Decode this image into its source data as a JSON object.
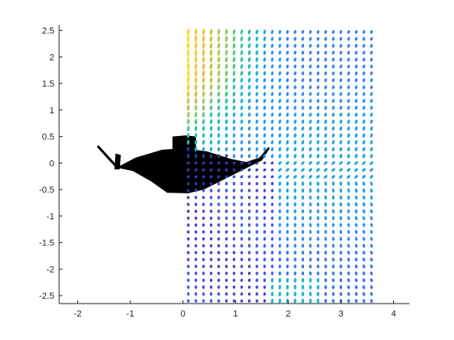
{
  "chart_data": {
    "type": "scatter",
    "title": "",
    "xlabel": "",
    "ylabel": "",
    "xlim": [
      -2.35,
      4.3
    ],
    "ylim": [
      -2.65,
      2.6
    ],
    "x_ticks": [
      -2,
      -1,
      0,
      1,
      2,
      3,
      4
    ],
    "x_tick_labels": [
      "-2",
      "-1",
      "0",
      "1",
      "2",
      "3",
      "4"
    ],
    "y_ticks": [
      -2.5,
      -2,
      -1.5,
      -1,
      -0.5,
      0,
      0.5,
      1,
      1.5,
      2,
      2.5
    ],
    "y_tick_labels": [
      "-2.5",
      "-2",
      "-1.5",
      "-1",
      "-0.5",
      "0",
      "0.5",
      "1",
      "1.5",
      "2",
      "2.5"
    ],
    "grid": false,
    "legend": "none",
    "marker_grid": {
      "x_min": 0.1,
      "x_max": 3.65,
      "x_step": 0.145,
      "y_min": -2.6,
      "y_max": 2.52,
      "y_step": 0.13
    },
    "colormap": [
      "#3e26a8",
      "#4353ef",
      "#2f8ef9",
      "#14b5d3",
      "#36c596",
      "#9bcb5a",
      "#e5be3b",
      "#fbd92c"
    ],
    "silhouette": {
      "fill": "#000000",
      "outline": [
        [
          -1.25,
          -0.08
        ],
        [
          -0.9,
          0.1
        ],
        [
          -0.4,
          0.25
        ],
        [
          0.0,
          0.28
        ],
        [
          0.45,
          0.22
        ],
        [
          0.9,
          0.08
        ],
        [
          1.2,
          0.02
        ],
        [
          1.45,
          0.1
        ],
        [
          1.62,
          0.3
        ],
        [
          1.65,
          0.28
        ],
        [
          1.5,
          0.05
        ],
        [
          1.2,
          -0.1
        ],
        [
          0.8,
          -0.3
        ],
        [
          0.4,
          -0.5
        ],
        [
          0.1,
          -0.57
        ],
        [
          -0.3,
          -0.56
        ],
        [
          -0.6,
          -0.35
        ],
        [
          -0.95,
          -0.15
        ],
        [
          -1.2,
          -0.1
        ]
      ],
      "sail": [
        [
          -0.2,
          0.25
        ],
        [
          -0.2,
          0.5
        ],
        [
          0.05,
          0.52
        ],
        [
          0.25,
          0.5
        ],
        [
          0.25,
          0.25
        ]
      ],
      "tail_rod": [
        [
          -1.27,
          -0.06
        ],
        [
          -1.62,
          0.32
        ]
      ],
      "tail_fin": [
        [
          -1.3,
          -0.12
        ],
        [
          -1.28,
          0.18
        ],
        [
          -1.18,
          0.15
        ],
        [
          -1.2,
          -0.12
        ]
      ]
    }
  }
}
